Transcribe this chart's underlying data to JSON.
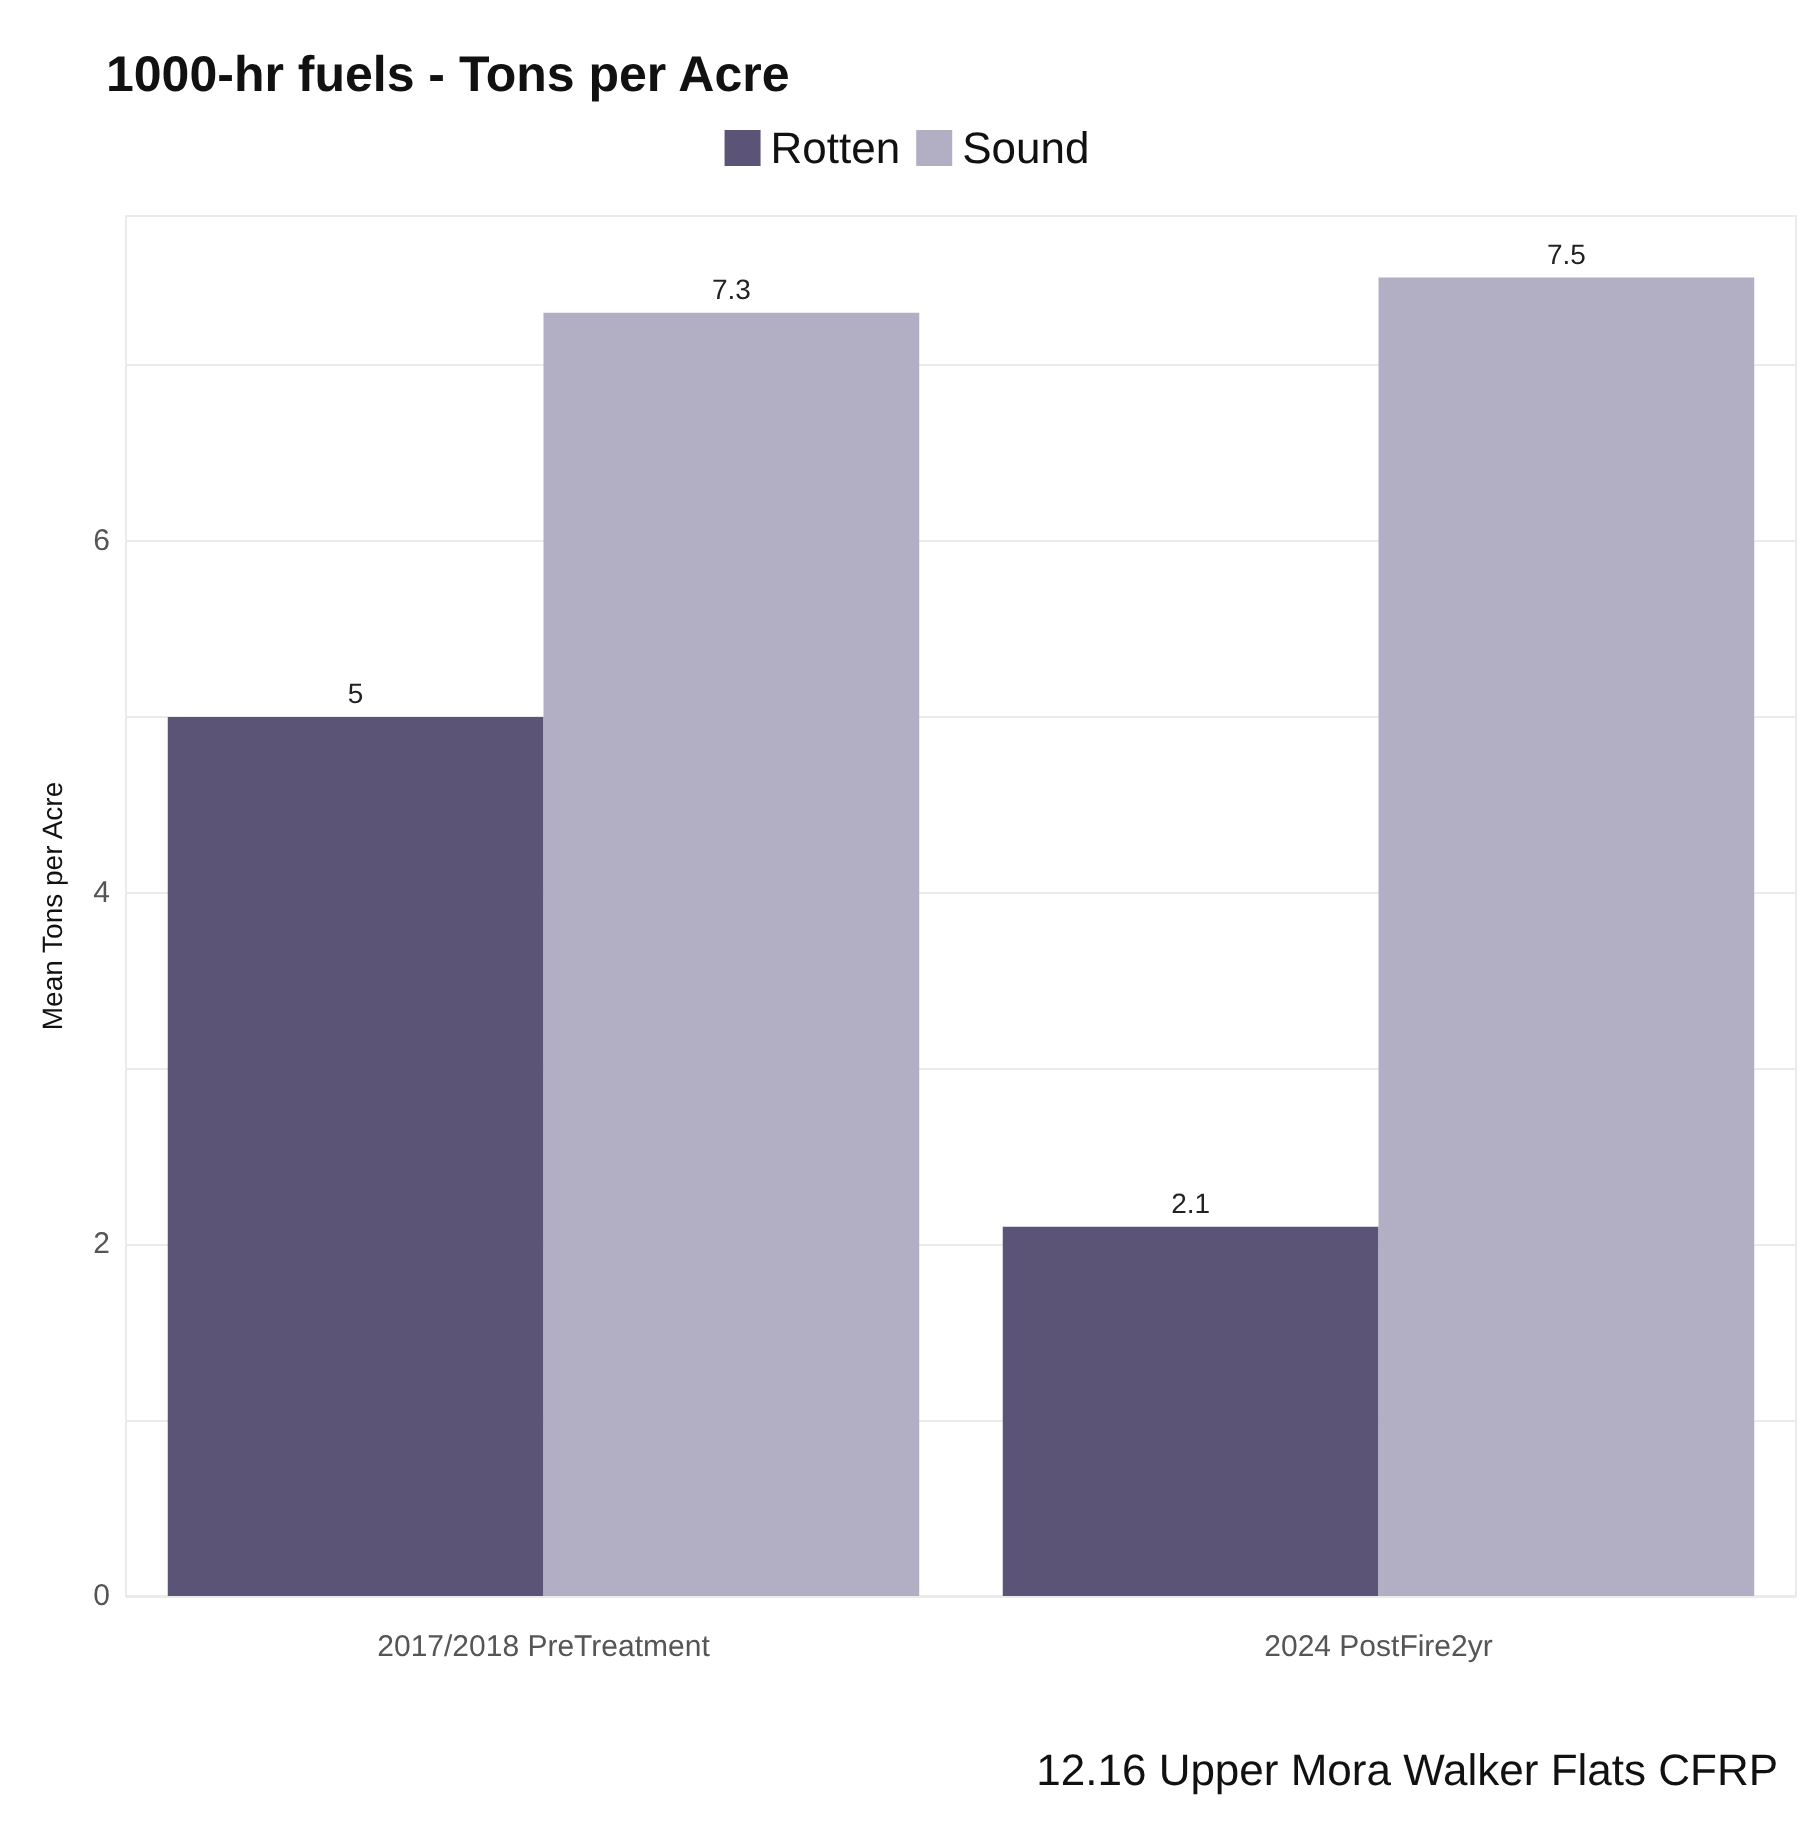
{
  "chart_data": {
    "type": "bar",
    "title": "1000-hr fuels - Tons per Acre",
    "ylabel": "Mean Tons per Acre",
    "categories": [
      "2017/2018 PreTreatment",
      "2024 PostFire2yr"
    ],
    "series": [
      {
        "name": "Rotten",
        "color": "#5b5477",
        "values": [
          5,
          2.1
        ]
      },
      {
        "name": "Sound",
        "color": "#b2afc4",
        "values": [
          7.3,
          7.5
        ]
      }
    ],
    "ylim": [
      0,
      7.85
    ],
    "yticks": [
      0,
      {
        "value": 1,
        "label": null
      },
      2,
      {
        "value": 3,
        "label": null
      },
      4,
      {
        "value": 5,
        "label": null
      },
      6,
      {
        "value": 7,
        "label": null
      }
    ],
    "grid": "y",
    "legend": "top",
    "data_labels": true,
    "annotations": [
      "12.16 Upper Mora Walker Flats CFRP"
    ]
  }
}
